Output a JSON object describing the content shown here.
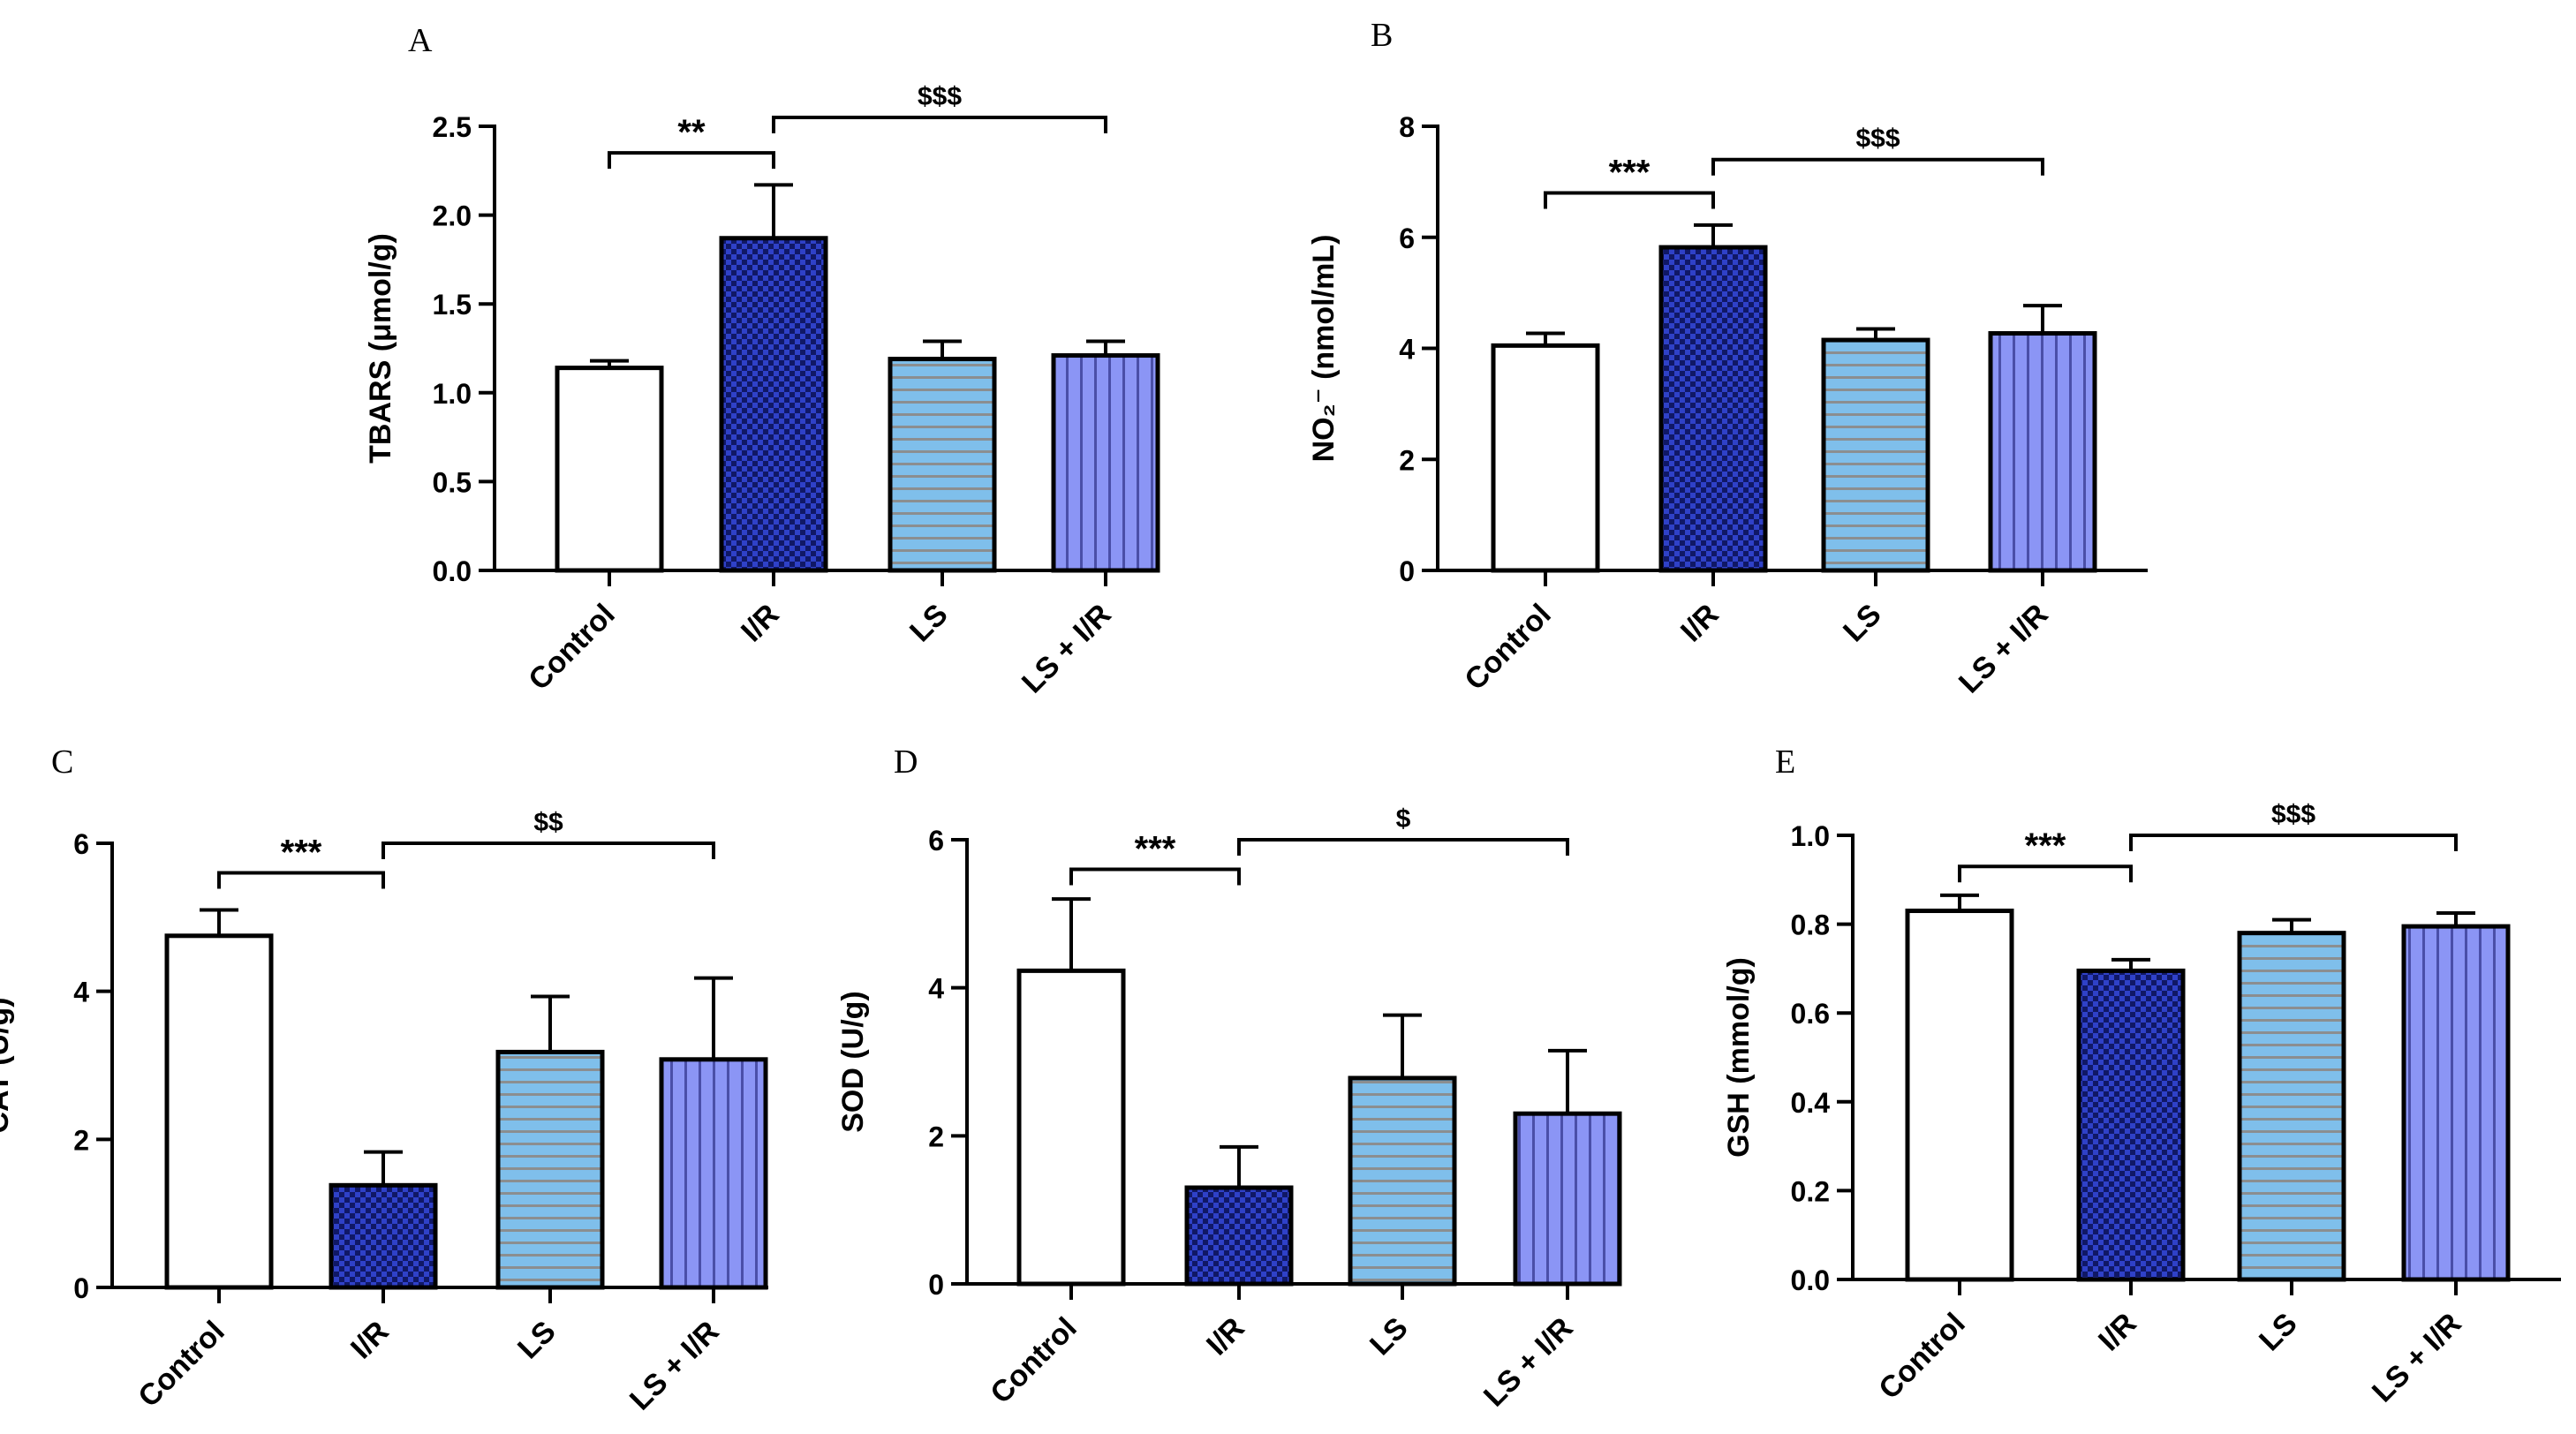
{
  "figure": {
    "categories": [
      "Control",
      "I/R",
      "LS",
      "LS + I/R"
    ],
    "colors": {
      "control": "#ffffff",
      "ir_fill": "#101866",
      "ir_check": "#2f41c8",
      "ls_fill": "#7fbfeb",
      "ls_lines": "#8b8e90",
      "lsir_fill": "#8b95f5",
      "lsir_lines": "#4a4fa8",
      "axis": "#000000"
    }
  },
  "chart_data": [
    {
      "type": "bar",
      "panel": "A",
      "title": "",
      "ylabel": "TBARS (μmol/g)",
      "categories": [
        "Control",
        "I/R",
        "LS",
        "LS + I/R"
      ],
      "values": [
        1.14,
        1.87,
        1.19,
        1.21
      ],
      "errors": [
        0.04,
        0.3,
        0.1,
        0.08
      ],
      "ylim": [
        0,
        2.5
      ],
      "yticks": [
        "0.0",
        "0.5",
        "1.0",
        "1.5",
        "2.0",
        "2.5"
      ],
      "significance": [
        {
          "from": 0,
          "to": 1,
          "label": "**",
          "level": 2.35
        },
        {
          "from": 1,
          "to": 3,
          "label": "$$$",
          "level": 2.55
        }
      ]
    },
    {
      "type": "bar",
      "panel": "B",
      "title": "",
      "ylabel": "NO₂⁻ (nmol/mL)",
      "categories": [
        "Control",
        "I/R",
        "LS",
        "LS + I/R"
      ],
      "values": [
        4.05,
        5.82,
        4.15,
        4.27
      ],
      "errors": [
        0.22,
        0.4,
        0.2,
        0.5
      ],
      "ylim": [
        0,
        8
      ],
      "yticks": [
        "0",
        "2",
        "4",
        "6",
        "8"
      ],
      "significance": [
        {
          "from": 0,
          "to": 1,
          "label": "***",
          "level": 6.8
        },
        {
          "from": 1,
          "to": 3,
          "label": "$$$",
          "level": 7.4
        }
      ]
    },
    {
      "type": "bar",
      "panel": "C",
      "title": "",
      "ylabel": "CAT (U/g)",
      "categories": [
        "Control",
        "I/R",
        "LS",
        "LS + I/R"
      ],
      "values": [
        4.75,
        1.38,
        3.18,
        3.08
      ],
      "errors": [
        0.35,
        0.45,
        0.75,
        1.1
      ],
      "ylim": [
        0,
        6
      ],
      "yticks": [
        "0",
        "2",
        "4",
        "6"
      ],
      "significance": [
        {
          "from": 0,
          "to": 1,
          "label": "***",
          "level": 5.6
        },
        {
          "from": 1,
          "to": 3,
          "label": "$$",
          "level": 6.0
        }
      ]
    },
    {
      "type": "bar",
      "panel": "D",
      "title": "",
      "ylabel": "SOD (U/g)",
      "categories": [
        "Control",
        "I/R",
        "LS",
        "LS + I/R"
      ],
      "values": [
        4.23,
        1.3,
        2.78,
        2.3
      ],
      "errors": [
        0.97,
        0.55,
        0.85,
        0.85
      ],
      "ylim": [
        0,
        6
      ],
      "yticks": [
        "0",
        "2",
        "4",
        "6"
      ],
      "significance": [
        {
          "from": 0,
          "to": 1,
          "label": "***",
          "level": 5.6
        },
        {
          "from": 1,
          "to": 3,
          "label": "$",
          "level": 6.0
        }
      ]
    },
    {
      "type": "bar",
      "panel": "E",
      "title": "",
      "ylabel": "GSH (mmol/g)",
      "categories": [
        "Control",
        "I/R",
        "LS",
        "LS + I/R"
      ],
      "values": [
        0.83,
        0.695,
        0.78,
        0.795
      ],
      "errors": [
        0.035,
        0.025,
        0.03,
        0.03
      ],
      "ylim": [
        0,
        1.0
      ],
      "yticks": [
        "0.0",
        "0.2",
        "0.4",
        "0.6",
        "0.8",
        "1.0"
      ],
      "significance": [
        {
          "from": 0,
          "to": 1,
          "label": "***",
          "level": 0.93
        },
        {
          "from": 1,
          "to": 3,
          "label": "$$$",
          "level": 1.0
        }
      ]
    }
  ]
}
